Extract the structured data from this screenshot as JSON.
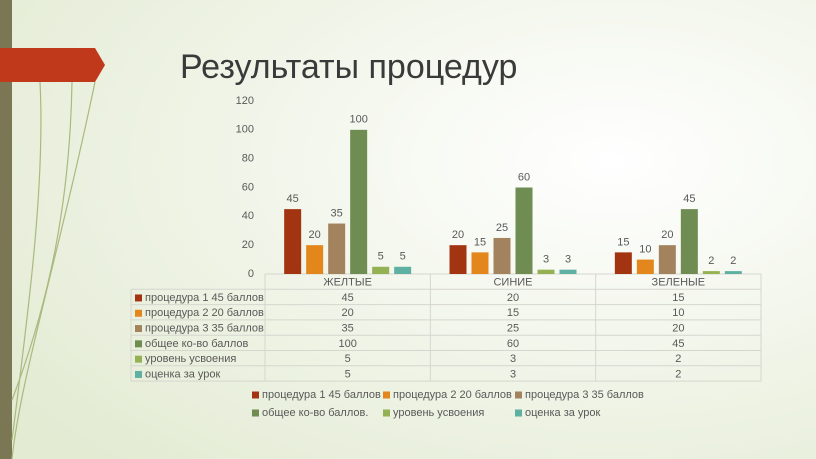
{
  "chart_data": {
    "type": "bar",
    "title": "Результаты процедур",
    "categories": [
      "ЖЕЛТЫЕ",
      "СИНИЕ",
      "ЗЕЛЕНЫЕ"
    ],
    "series": [
      {
        "name": "процедура 1 45 баллов",
        "color": "#a33412",
        "values": [
          45,
          20,
          15
        ]
      },
      {
        "name": "процедура 2 20 баллов",
        "color": "#e3861b",
        "values": [
          20,
          15,
          10
        ]
      },
      {
        "name": "процедура 3 35 баллов",
        "color": "#a2835d",
        "values": [
          35,
          25,
          20
        ]
      },
      {
        "name": "общее ко-во баллов",
        "color": "#6f8c52",
        "values": [
          100,
          60,
          45
        ]
      },
      {
        "name": "уровень усвоения",
        "color": "#94b154",
        "values": [
          5,
          3,
          2
        ]
      },
      {
        "name": "оценка за урок",
        "color": "#5eb0a2",
        "values": [
          5,
          3,
          2
        ]
      }
    ],
    "legend_labels": [
      "процедура 1 45 баллов",
      "процедура 2 20 баллов",
      "процедура 3 35 баллов",
      "общее ко-во баллов.",
      "уровень усвоения",
      "оценка за урок"
    ],
    "ylim": [
      0,
      120
    ],
    "yticks": [
      0,
      20,
      40,
      60,
      80,
      100,
      120
    ],
    "grid": false,
    "legend": "bottom"
  }
}
